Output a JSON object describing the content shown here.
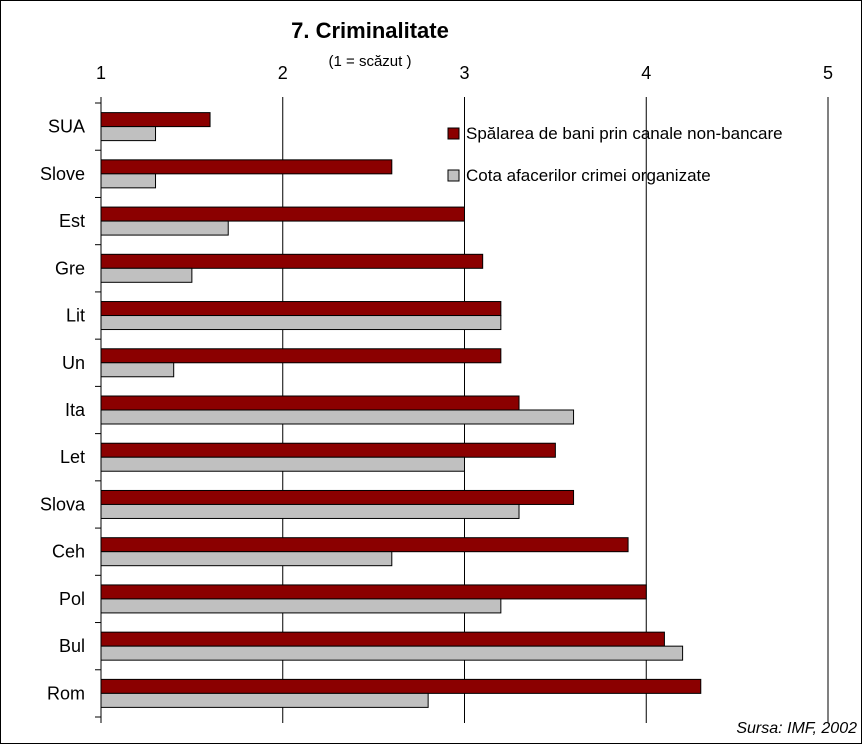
{
  "chart_data": {
    "type": "bar",
    "orientation": "horizontal",
    "title": "7. Criminalitate",
    "subtitle": "(1 = scăzut )",
    "source": "Sursa: IMF, 2002",
    "xlim": [
      1,
      5
    ],
    "x_ticks": [
      "1",
      "2",
      "3",
      "4",
      "5"
    ],
    "grid": true,
    "legend_position": "top-right",
    "categories": [
      "SUA",
      "Slove",
      "Est",
      "Gre",
      "Lit",
      "Un",
      "Ita",
      "Let",
      "Slova",
      "Ceh",
      "Pol",
      "Bul",
      "Rom"
    ],
    "series": [
      {
        "name": "Spălarea de bani prin canale non-bancare",
        "color": "#8B0000",
        "values": [
          1.6,
          2.6,
          3.0,
          3.1,
          3.2,
          3.2,
          3.3,
          3.5,
          3.6,
          3.9,
          4.0,
          4.1,
          4.3
        ]
      },
      {
        "name": "Cota afacerilor crimei organizate",
        "color": "#C0C0C0",
        "values": [
          1.3,
          1.3,
          1.7,
          1.5,
          3.2,
          1.4,
          3.6,
          3.0,
          3.3,
          2.6,
          3.2,
          4.2,
          2.8
        ]
      }
    ]
  }
}
